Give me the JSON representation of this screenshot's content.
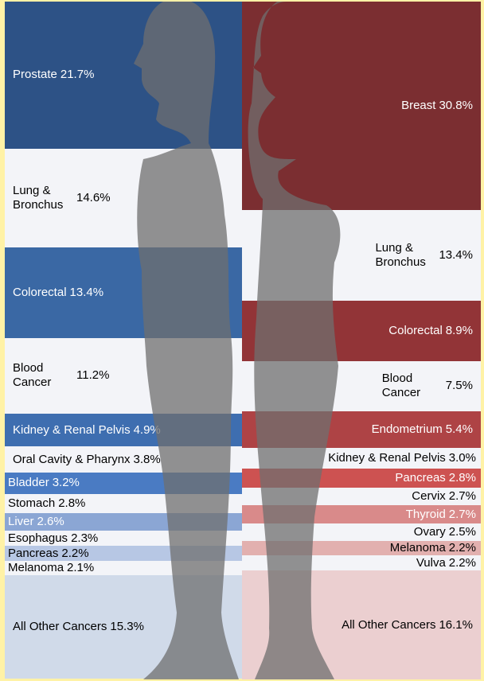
{
  "chart_data": {
    "type": "stacked-column",
    "columns": [
      {
        "categories": [
          "Prostate",
          "Lung & Bronchus",
          "Colorectal",
          "Blood Cancer",
          "Kidney & Renal Pelvis",
          "Oral Cavity & Pharynx",
          "Bladder",
          "Stomach",
          "Liver",
          "Esophagus",
          "Pancreas",
          "Melanoma",
          "All Other Cancers"
        ],
        "values": [
          21.7,
          14.6,
          13.4,
          11.2,
          4.9,
          3.8,
          3.2,
          2.8,
          2.6,
          2.3,
          2.2,
          2.1,
          15.3
        ],
        "value_labels": [
          "21.7%",
          "14.6%",
          "13.4%",
          "11.2%",
          "4.9%",
          "3.8%",
          "3.2%",
          "2.8%",
          "2.6%",
          "2.3%",
          "2.2%",
          "2.1%",
          "15.3%"
        ],
        "colors": [
          "#2d5286",
          "#f3f4f8",
          "#3a68a4",
          "#f3f4f8",
          "#3e6eb0",
          "#f3f4f8",
          "#4a7bc3",
          "#f3f4f8",
          "#8ba6d4",
          "#f3f4f8",
          "#b7c7e4",
          "#f3f4f8",
          "#d0dae9"
        ]
      },
      {
        "categories": [
          "Breast",
          "Lung & Bronchus",
          "Colorectal",
          "Blood Cancer",
          "Endometrium",
          "Kidney & Renal Pelvis",
          "Pancreas",
          "Cervix",
          "Thyroid",
          "Ovary",
          "Melanoma",
          "Vulva",
          "All Other Cancers"
        ],
        "values": [
          30.8,
          13.4,
          8.9,
          7.5,
          5.4,
          3.0,
          2.8,
          2.7,
          2.7,
          2.5,
          2.2,
          2.2,
          16.1
        ],
        "value_labels": [
          "30.8%",
          "13.4%",
          "8.9%",
          "7.5%",
          "5.4%",
          "3.0%",
          "2.8%",
          "2.7%",
          "2.7%",
          "2.5%",
          "2.2%",
          "2.2%",
          "16.1%"
        ],
        "colors": [
          "#7b2e31",
          "#f3f4f8",
          "#923437",
          "#f3f4f8",
          "#ae4345",
          "#f3f4f8",
          "#cd5251",
          "#f3f4f8",
          "#d98a8a",
          "#f3f4f8",
          "#e2b0af",
          "#f3f4f8",
          "#ebcfd0"
        ]
      }
    ]
  }
}
